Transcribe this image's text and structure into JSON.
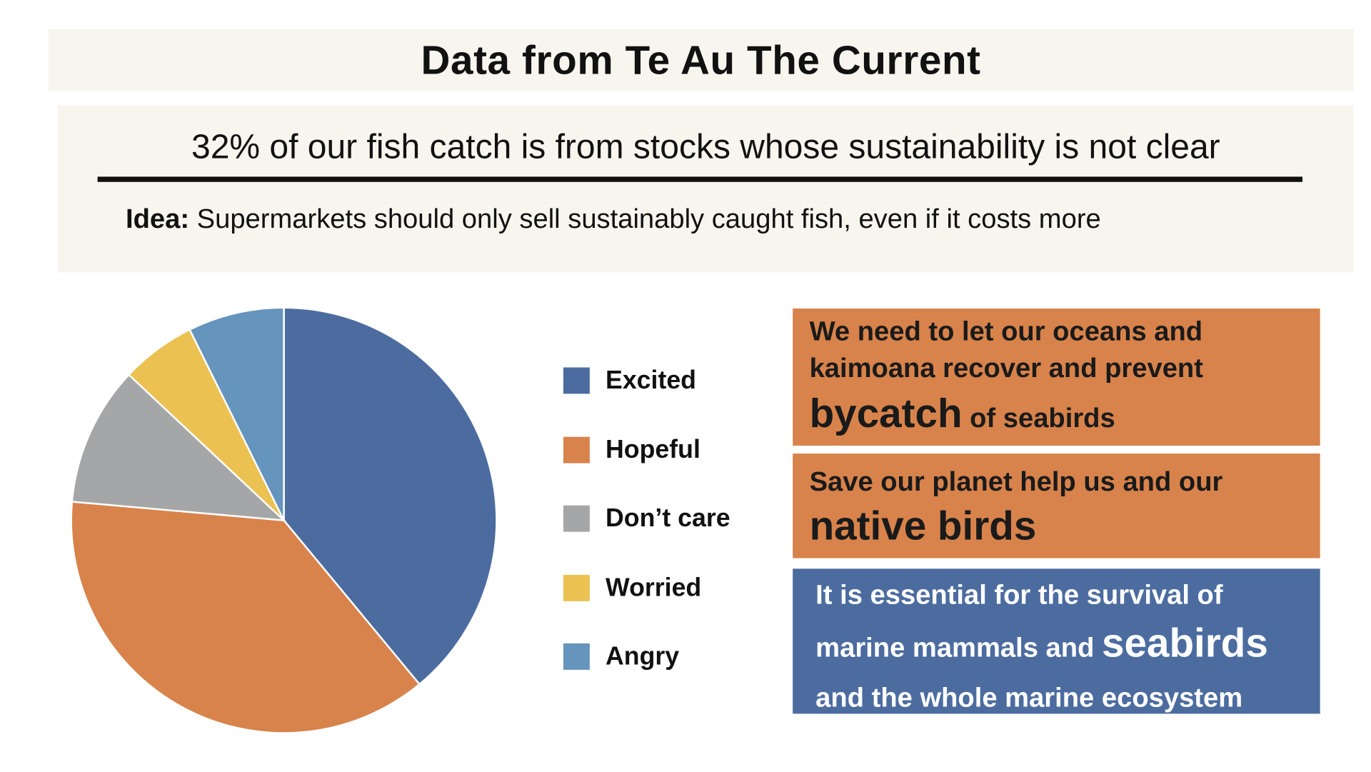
{
  "title": "Data from Te Au The Current",
  "info": {
    "statistic": "32% of our fish catch is from stocks whose sustainability is not clear",
    "idea_label": "Idea:",
    "idea_text": " Supermarkets should only sell sustainably caught fish, even if it costs more"
  },
  "chart_data": {
    "type": "pie",
    "categories": [
      "Excited",
      "Hopeful",
      "Don’t care",
      "Worried",
      "Angry"
    ],
    "values": [
      39,
      37.4,
      10.6,
      5.7,
      7.3
    ],
    "colors": [
      "#4c6ca0",
      "#d8834b",
      "#a5a6a8",
      "#ebc252",
      "#6594bd"
    ],
    "start_angle": "12 o'clock, clockwise",
    "legend_position": "right"
  },
  "quotes": [
    {
      "line1": "We need to let our oceans and",
      "line2": "kaimoana recover and prevent",
      "emph": "bycatch",
      "tail": " of seabirds",
      "color": "#d8834b"
    },
    {
      "line1": "Save our planet help us and our",
      "emph": "native birds",
      "color": "#d8834b"
    },
    {
      "line1": "It is essential for the survival of",
      "line2": "marine mammals and ",
      "emph": "seabirds",
      "line3": "and the whole marine ecosystem",
      "color": "#4c6ca0"
    }
  ]
}
